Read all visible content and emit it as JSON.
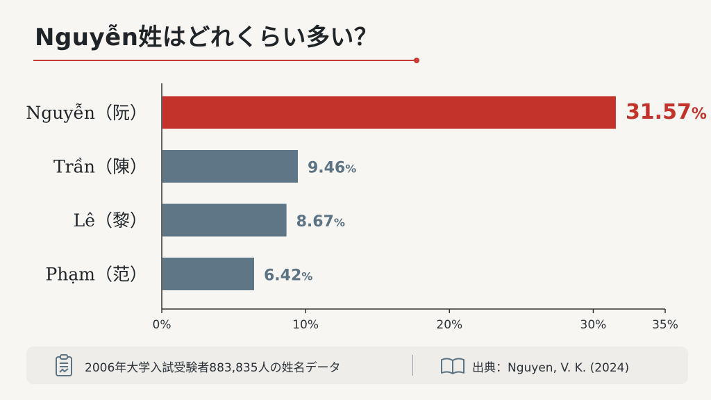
{
  "title": "Nguyễn姓はどれくらい多い？",
  "chart_data": {
    "type": "bar",
    "orientation": "horizontal",
    "categories": [
      "Nguyễn（阮）",
      "Trần（陳）",
      "Lê（黎）",
      "Phạm（范）"
    ],
    "values": [
      31.57,
      9.46,
      8.67,
      6.42
    ],
    "value_labels": [
      "31.57",
      "9.46",
      "8.67",
      "6.42"
    ],
    "value_suffix": "%",
    "xlim": [
      0,
      35
    ],
    "xticks": [
      0,
      10,
      20,
      30,
      35
    ],
    "xtick_labels": [
      "0%",
      "10%",
      "20%",
      "30%",
      "35%"
    ],
    "highlight_index": 0,
    "colors": {
      "highlight": "#c4322c",
      "default": "#5e7686",
      "label_default": "#5c7384"
    },
    "grid": false
  },
  "footer": {
    "note": "2006年大学入試受験者883,835人の姓名データ",
    "note_icon": "clipboard-icon",
    "source": "出典：Nguyen, V. K. (2024)",
    "source_icon": "book-icon"
  }
}
